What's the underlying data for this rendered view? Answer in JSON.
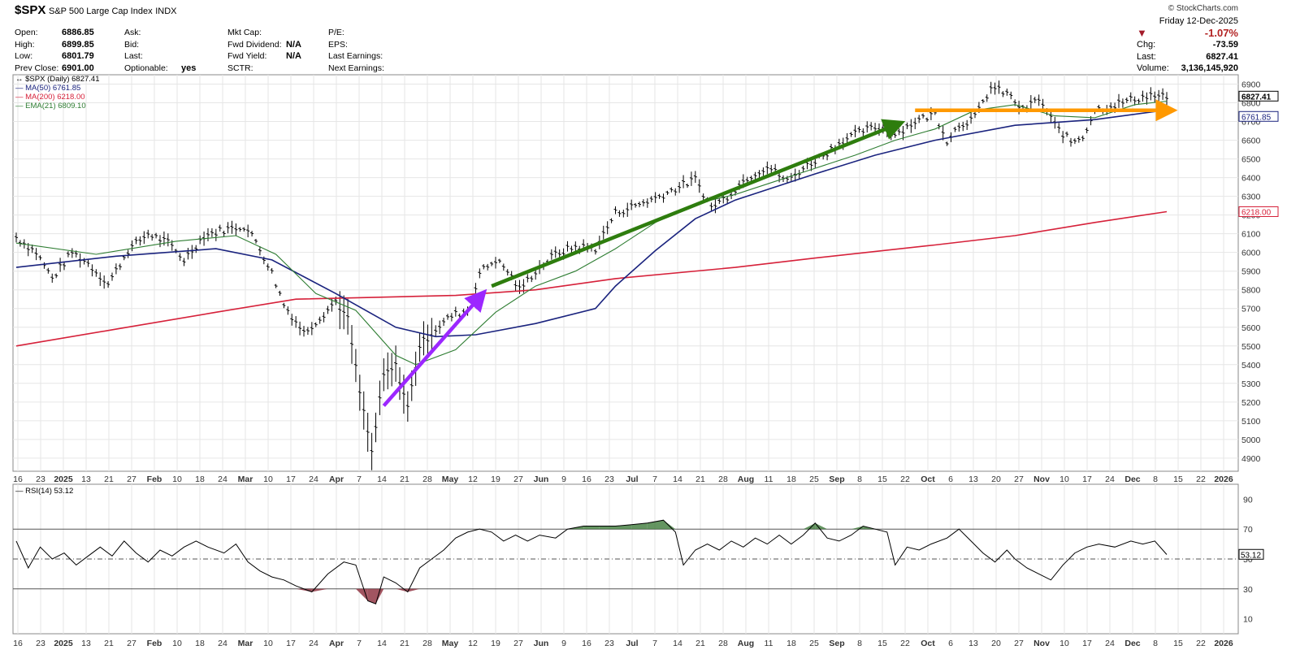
{
  "header": {
    "symbol": "$SPX",
    "name": "S&P 500 Large Cap Index",
    "exchange": "INDX",
    "watermark": "© StockCharts.com"
  },
  "quote": {
    "col1": [
      {
        "label": "Open:",
        "value": "6886.85"
      },
      {
        "label": "High:",
        "value": "6899.85"
      },
      {
        "label": "Low:",
        "value": "6801.79"
      },
      {
        "label": "Prev Close:",
        "value": "6901.00"
      }
    ],
    "col2": [
      {
        "label": "Ask:",
        "value": ""
      },
      {
        "label": "Bid:",
        "value": ""
      },
      {
        "label": "Last:",
        "value": ""
      },
      {
        "label": "Optionable:",
        "value": "yes"
      }
    ],
    "col3": [
      {
        "label": "Mkt Cap:",
        "value": ""
      },
      {
        "label": "Fwd Dividend:",
        "value": "N/A"
      },
      {
        "label": "Fwd Yield:",
        "value": "N/A"
      },
      {
        "label": "SCTR:",
        "value": ""
      }
    ],
    "col4": [
      {
        "label": "P/E:",
        "value": ""
      },
      {
        "label": "EPS:",
        "value": ""
      },
      {
        "label": "Last Earnings:",
        "value": ""
      },
      {
        "label": "Next Earnings:",
        "value": ""
      }
    ],
    "right": {
      "date": "Friday  12-Dec-2025",
      "pct": "-1.07%",
      "chg_label": "Chg:",
      "chg": "-73.59",
      "last_label": "Last:",
      "last": "6827.41",
      "volume_label": "Volume:",
      "volume": "3,136,145,920"
    }
  },
  "chart_data": [
    {
      "type": "line",
      "subtype": "ohlc-bars",
      "legend": [
        {
          "label": "$SPX (Daily) 6827.41",
          "color": "#000000"
        },
        {
          "label": "MA(50) 6761.85",
          "color": "#1a237e"
        },
        {
          "label": "MA(200) 6218.00",
          "color": "#d6213a"
        },
        {
          "label": "EMA(21) 6809.10",
          "color": "#2e7d32"
        }
      ],
      "y_ticks": [
        "6900",
        "6800",
        "6700",
        "6600",
        "6500",
        "6400",
        "6300",
        "6200",
        "6100",
        "6000",
        "5900",
        "5800",
        "5700",
        "5600",
        "5500",
        "5400",
        "5300",
        "5200",
        "5100",
        "5000",
        "4900"
      ],
      "ylim": [
        4830,
        6950
      ],
      "x_ticks": [
        "16",
        "23",
        "2025",
        "13",
        "21",
        "27",
        "Feb",
        "10",
        "18",
        "24",
        "Mar",
        "10",
        "17",
        "24",
        "Apr",
        "7",
        "14",
        "21",
        "28",
        "May",
        "12",
        "19",
        "27",
        "Jun",
        "9",
        "16",
        "23",
        "Jul",
        "7",
        "14",
        "21",
        "28",
        "Aug",
        "11",
        "18",
        "25",
        "Sep",
        "8",
        "15",
        "22",
        "Oct",
        "6",
        "13",
        "20",
        "27",
        "Nov",
        "10",
        "17",
        "24",
        "Dec",
        "8",
        "15",
        "22",
        "2026"
      ],
      "price_path": [
        [
          0,
          6080
        ],
        [
          10,
          6000
        ],
        [
          18,
          5860
        ],
        [
          28,
          6000
        ],
        [
          36,
          5940
        ],
        [
          46,
          5830
        ],
        [
          56,
          6010
        ],
        [
          66,
          6100
        ],
        [
          76,
          6050
        ],
        [
          84,
          5960
        ],
        [
          94,
          6090
        ],
        [
          104,
          6120
        ],
        [
          114,
          6140
        ],
        [
          120,
          6060
        ],
        [
          128,
          5890
        ],
        [
          134,
          5720
        ],
        [
          144,
          5570
        ],
        [
          152,
          5650
        ],
        [
          160,
          5740
        ],
        [
          166,
          5640
        ],
        [
          172,
          5250
        ],
        [
          178,
          4930
        ],
        [
          184,
          5340
        ],
        [
          190,
          5390
        ],
        [
          196,
          5170
        ],
        [
          202,
          5500
        ],
        [
          210,
          5590
        ],
        [
          218,
          5660
        ],
        [
          226,
          5690
        ],
        [
          232,
          5890
        ],
        [
          240,
          5960
        ],
        [
          246,
          5900
        ],
        [
          252,
          5800
        ],
        [
          260,
          5900
        ],
        [
          270,
          5990
        ],
        [
          280,
          6030
        ],
        [
          290,
          6020
        ],
        [
          300,
          6210
        ],
        [
          310,
          6250
        ],
        [
          320,
          6290
        ],
        [
          330,
          6340
        ],
        [
          340,
          6390
        ],
        [
          348,
          6240
        ],
        [
          356,
          6300
        ],
        [
          366,
          6400
        ],
        [
          376,
          6460
        ],
        [
          386,
          6380
        ],
        [
          394,
          6450
        ],
        [
          404,
          6520
        ],
        [
          414,
          6600
        ],
        [
          424,
          6650
        ],
        [
          432,
          6670
        ],
        [
          440,
          6630
        ],
        [
          450,
          6700
        ],
        [
          460,
          6740
        ],
        [
          466,
          6600
        ],
        [
          472,
          6680
        ],
        [
          480,
          6720
        ],
        [
          488,
          6880
        ],
        [
          496,
          6850
        ],
        [
          504,
          6760
        ],
        [
          512,
          6820
        ],
        [
          520,
          6680
        ],
        [
          528,
          6590
        ],
        [
          534,
          6620
        ],
        [
          540,
          6760
        ],
        [
          550,
          6790
        ],
        [
          560,
          6820
        ],
        [
          568,
          6840
        ],
        [
          576,
          6827
        ]
      ],
      "ma50": [
        [
          0,
          5920
        ],
        [
          50,
          5980
        ],
        [
          100,
          6020
        ],
        [
          128,
          5960
        ],
        [
          160,
          5780
        ],
        [
          190,
          5600
        ],
        [
          210,
          5550
        ],
        [
          230,
          5560
        ],
        [
          260,
          5620
        ],
        [
          290,
          5700
        ],
        [
          300,
          5820
        ],
        [
          320,
          6010
        ],
        [
          340,
          6180
        ],
        [
          360,
          6280
        ],
        [
          400,
          6420
        ],
        [
          430,
          6520
        ],
        [
          460,
          6600
        ],
        [
          500,
          6680
        ],
        [
          540,
          6710
        ],
        [
          576,
          6762
        ]
      ],
      "ma200": [
        [
          0,
          5500
        ],
        [
          50,
          5590
        ],
        [
          100,
          5680
        ],
        [
          140,
          5750
        ],
        [
          180,
          5760
        ],
        [
          220,
          5770
        ],
        [
          260,
          5800
        ],
        [
          300,
          5860
        ],
        [
          360,
          5920
        ],
        [
          400,
          5970
        ],
        [
          460,
          6040
        ],
        [
          500,
          6090
        ],
        [
          540,
          6160
        ],
        [
          576,
          6218
        ]
      ],
      "ema21": [
        [
          0,
          6050
        ],
        [
          40,
          5990
        ],
        [
          80,
          6060
        ],
        [
          110,
          6090
        ],
        [
          130,
          5990
        ],
        [
          150,
          5780
        ],
        [
          170,
          5690
        ],
        [
          190,
          5450
        ],
        [
          200,
          5400
        ],
        [
          220,
          5480
        ],
        [
          240,
          5680
        ],
        [
          260,
          5820
        ],
        [
          280,
          5900
        ],
        [
          300,
          6020
        ],
        [
          320,
          6160
        ],
        [
          340,
          6260
        ],
        [
          360,
          6310
        ],
        [
          380,
          6380
        ],
        [
          400,
          6450
        ],
        [
          420,
          6520
        ],
        [
          440,
          6600
        ],
        [
          460,
          6660
        ],
        [
          480,
          6760
        ],
        [
          500,
          6790
        ],
        [
          520,
          6730
        ],
        [
          540,
          6720
        ],
        [
          560,
          6790
        ],
        [
          576,
          6809
        ]
      ],
      "annotations": [
        {
          "type": "arrow",
          "color": "#9c27ff",
          "from": [
            184,
            5180
          ],
          "to": [
            232,
            5760
          ]
        },
        {
          "type": "arrow",
          "color": "#2e7d0e",
          "from": [
            238,
            5820
          ],
          "to": [
            440,
            6680
          ]
        },
        {
          "type": "arrow",
          "color": "#ff9900",
          "from": [
            450,
            6760
          ],
          "to": [
            576,
            6760
          ]
        }
      ],
      "right_labels": [
        {
          "value": "6827.41",
          "color": "#000000",
          "y": 6827
        },
        {
          "value": "6761.85",
          "color": "#1a237e",
          "y": 6762
        },
        {
          "value": "6218.00",
          "color": "#d6213a",
          "y": 6218
        }
      ]
    },
    {
      "type": "line",
      "legend": [
        {
          "label": "RSI(14) 53.12",
          "color": "#000000"
        }
      ],
      "y_ticks": [
        "90",
        "70",
        "50",
        "30",
        "10"
      ],
      "ylim": [
        0,
        100
      ],
      "overbought": 70,
      "oversold": 30,
      "mid": 50,
      "last_label": "53.12",
      "values": [
        [
          0,
          62
        ],
        [
          6,
          44
        ],
        [
          12,
          58
        ],
        [
          18,
          50
        ],
        [
          24,
          54
        ],
        [
          30,
          46
        ],
        [
          36,
          52
        ],
        [
          42,
          58
        ],
        [
          48,
          52
        ],
        [
          54,
          62
        ],
        [
          60,
          54
        ],
        [
          66,
          48
        ],
        [
          72,
          56
        ],
        [
          78,
          52
        ],
        [
          84,
          58
        ],
        [
          90,
          62
        ],
        [
          96,
          58
        ],
        [
          104,
          54
        ],
        [
          110,
          60
        ],
        [
          116,
          48
        ],
        [
          122,
          42
        ],
        [
          128,
          38
        ],
        [
          134,
          36
        ],
        [
          140,
          32
        ],
        [
          148,
          28
        ],
        [
          156,
          40
        ],
        [
          164,
          48
        ],
        [
          170,
          46
        ],
        [
          176,
          22
        ],
        [
          180,
          20
        ],
        [
          184,
          38
        ],
        [
          190,
          34
        ],
        [
          196,
          28
        ],
        [
          202,
          44
        ],
        [
          208,
          50
        ],
        [
          214,
          56
        ],
        [
          220,
          64
        ],
        [
          226,
          68
        ],
        [
          232,
          70
        ],
        [
          238,
          68
        ],
        [
          244,
          62
        ],
        [
          250,
          66
        ],
        [
          256,
          62
        ],
        [
          262,
          66
        ],
        [
          270,
          64
        ],
        [
          276,
          70
        ],
        [
          284,
          72
        ],
        [
          292,
          72
        ],
        [
          300,
          72
        ],
        [
          308,
          73
        ],
        [
          316,
          74
        ],
        [
          324,
          76
        ],
        [
          330,
          68
        ],
        [
          334,
          46
        ],
        [
          340,
          56
        ],
        [
          346,
          60
        ],
        [
          352,
          56
        ],
        [
          358,
          62
        ],
        [
          364,
          58
        ],
        [
          370,
          64
        ],
        [
          376,
          60
        ],
        [
          382,
          66
        ],
        [
          388,
          60
        ],
        [
          394,
          66
        ],
        [
          400,
          74
        ],
        [
          406,
          64
        ],
        [
          412,
          62
        ],
        [
          418,
          66
        ],
        [
          424,
          72
        ],
        [
          430,
          70
        ],
        [
          436,
          68
        ],
        [
          440,
          46
        ],
        [
          446,
          58
        ],
        [
          452,
          56
        ],
        [
          458,
          60
        ],
        [
          466,
          64
        ],
        [
          472,
          70
        ],
        [
          478,
          62
        ],
        [
          484,
          54
        ],
        [
          490,
          48
        ],
        [
          496,
          56
        ],
        [
          500,
          50
        ],
        [
          506,
          44
        ],
        [
          512,
          40
        ],
        [
          518,
          36
        ],
        [
          524,
          46
        ],
        [
          530,
          54
        ],
        [
          536,
          58
        ],
        [
          542,
          60
        ],
        [
          550,
          58
        ],
        [
          558,
          62
        ],
        [
          564,
          60
        ],
        [
          570,
          62
        ],
        [
          576,
          53
        ]
      ]
    }
  ]
}
